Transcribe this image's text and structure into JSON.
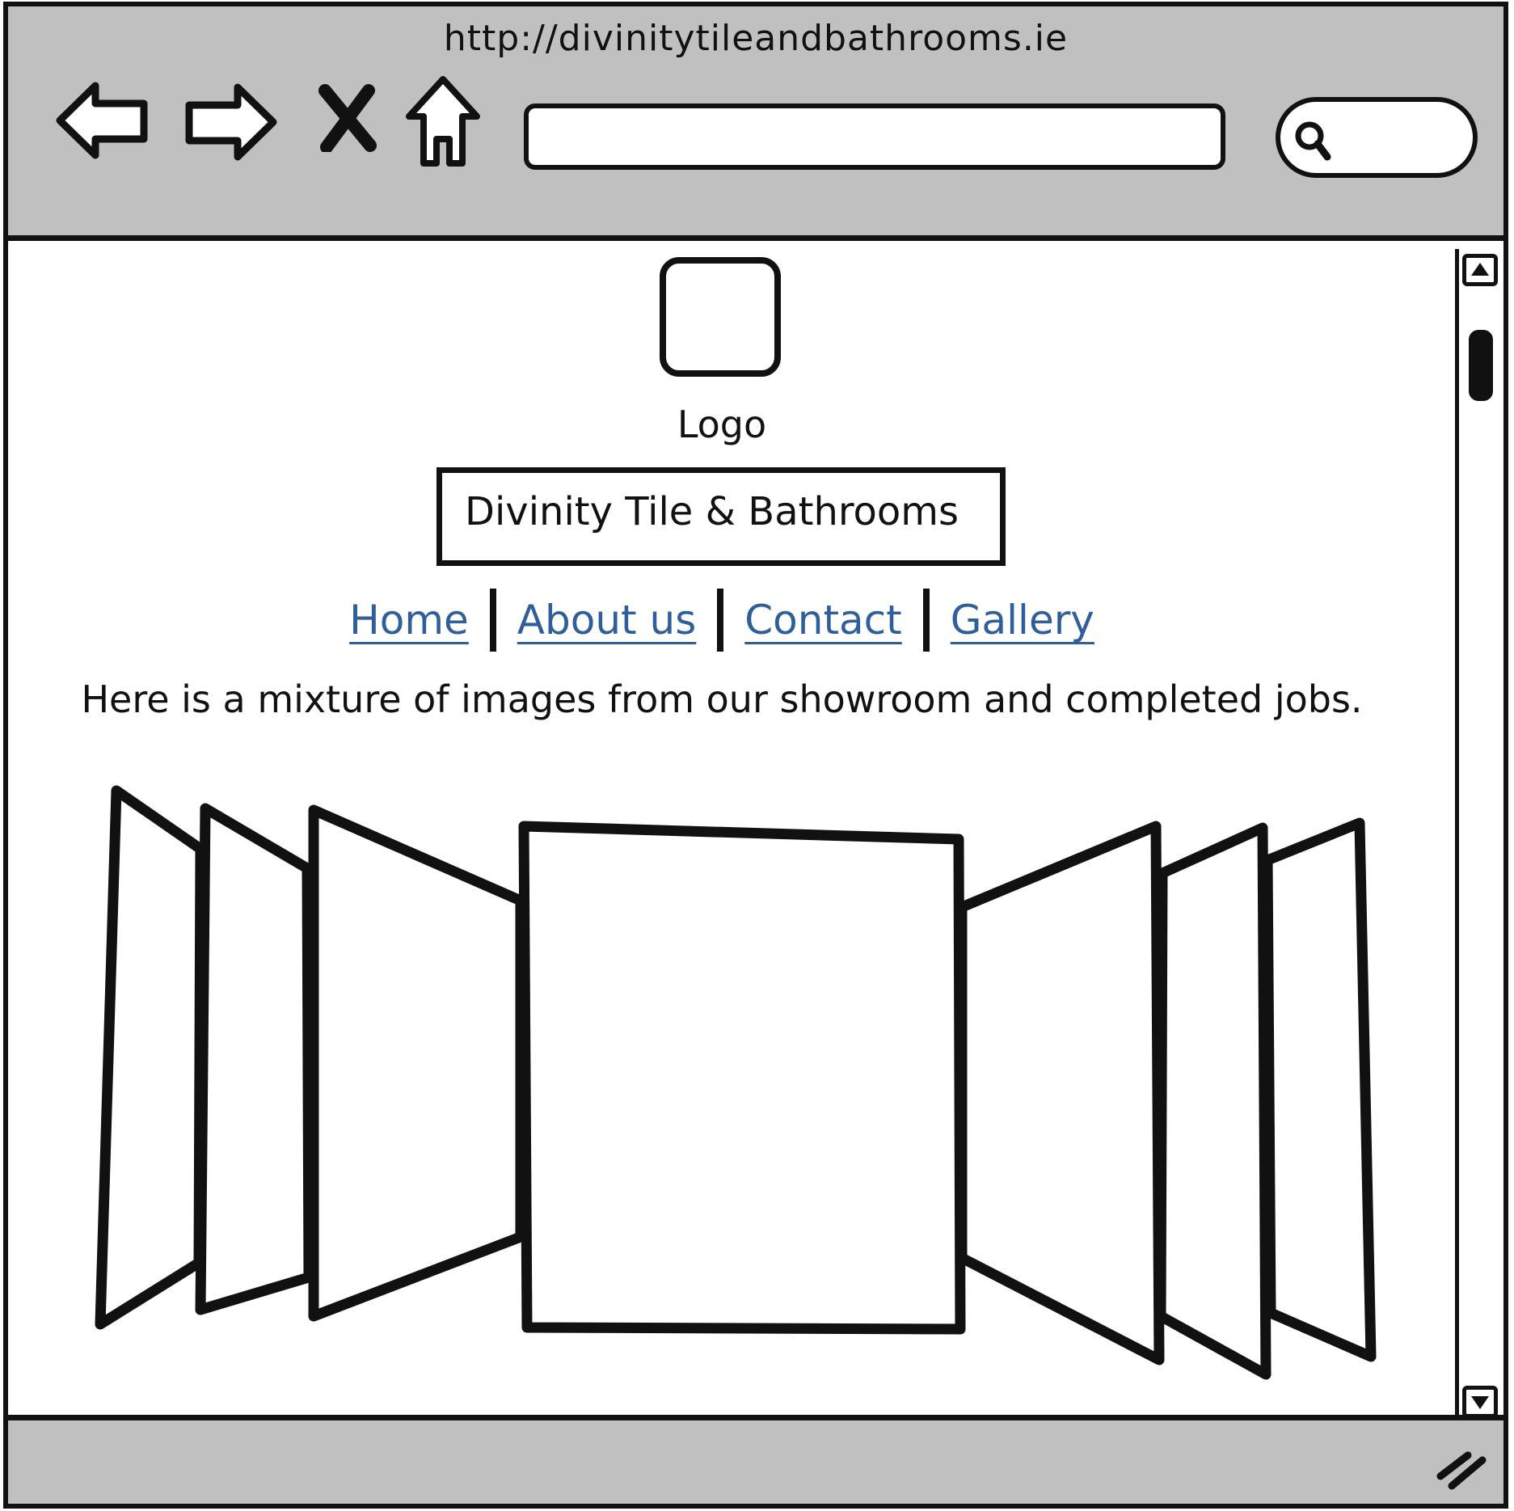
{
  "browser": {
    "url": "http://divinitytileandbathrooms.ie",
    "address_value": "",
    "search_value": ""
  },
  "page": {
    "logo_label": "Logo",
    "site_title": "Divinity Tile & Bathrooms",
    "nav": [
      "Home",
      "About us",
      "Contact",
      "Gallery"
    ],
    "intro": "Here is a mixture of images from our showroom and completed jobs."
  },
  "colors": {
    "chrome": "#c0c0c0",
    "link": "#2f5e9a",
    "ink": "#111111"
  },
  "icons": [
    "back-arrow-icon",
    "forward-arrow-icon",
    "stop-icon",
    "home-icon",
    "search-icon",
    "scroll-up-arrow-icon",
    "scroll-down-arrow-icon",
    "resize-grip-icon"
  ]
}
